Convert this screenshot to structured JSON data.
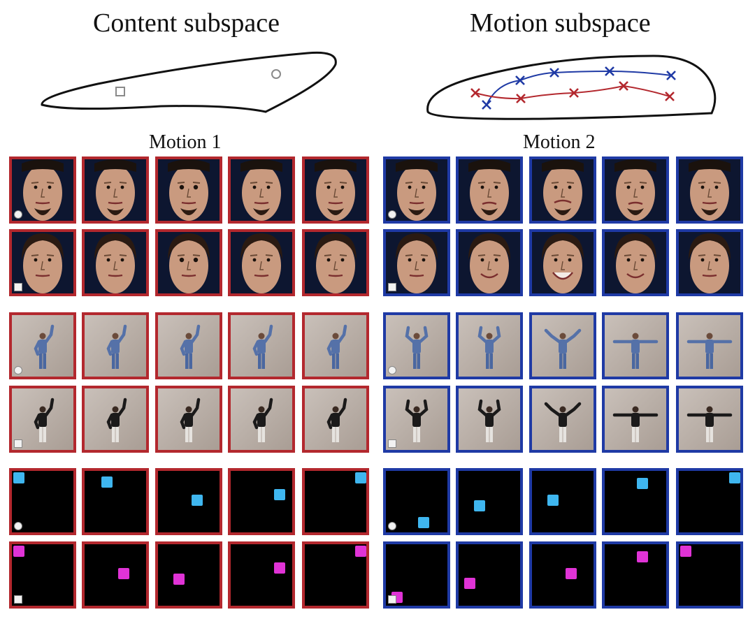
{
  "header": {
    "content_title": "Content subspace",
    "motion_title": "Motion subspace"
  },
  "groups": {
    "motion1_label": "Motion 1",
    "motion2_label": "Motion 2"
  },
  "colors": {
    "motion1": "#b3282e",
    "motion2": "#1f3aa5",
    "outline": "#111111",
    "content_marker": "#8a8a8a",
    "face_bg": "#0d1630",
    "skin": "#c99a7f",
    "skin_dark": "#6a4a36",
    "wall": "#b7aba2",
    "cyan_square": "#3fb6ef",
    "magenta_square": "#e033d6"
  },
  "diagram": {
    "content_markers": [
      "square-icon",
      "circle-icon"
    ],
    "motion_path_markers": "cross-icon"
  },
  "rows": [
    {
      "kind": "face",
      "subject": "man",
      "marker": "circle",
      "m1": [
        "neutral",
        "neutral",
        "widen",
        "neutral",
        "neutral"
      ],
      "m2": [
        "neutral",
        "frown",
        "snarl",
        "frown",
        "neutral"
      ]
    },
    {
      "kind": "face",
      "subject": "woman",
      "marker": "square",
      "m1": [
        "neutral",
        "neutral",
        "widen",
        "neutral",
        "neutral"
      ],
      "m2": [
        "neutral",
        "smile",
        "laugh",
        "smile",
        "neutral"
      ]
    },
    {
      "kind": "body",
      "subject": "light",
      "marker": "circle",
      "m1": [
        "arm-up",
        "arm-up",
        "arm-up",
        "arm-up",
        "arm-up"
      ],
      "m2": [
        "arms-up",
        "arms-up",
        "arms-spread",
        "arms-side",
        "arms-side"
      ]
    },
    {
      "kind": "body",
      "subject": "dark",
      "marker": "square",
      "m1": [
        "arm-up",
        "arm-up",
        "arm-up",
        "arm-up",
        "arm-up"
      ],
      "m2": [
        "arms-up",
        "arms-up",
        "arms-spread",
        "arms-side",
        "arms-side"
      ]
    },
    {
      "kind": "square",
      "subject": "cyan",
      "marker": "circle",
      "m1": [
        "top-left",
        "upper-mid",
        "center",
        "center-right",
        "top-right"
      ],
      "m2": [
        "bottom-center",
        "lower-mid",
        "center-mid",
        "upper-center",
        "top-right"
      ]
    },
    {
      "kind": "square",
      "subject": "magenta",
      "marker": "square",
      "m1": [
        "top-left",
        "center",
        "lower-mid",
        "center-right",
        "top-right"
      ],
      "m2": [
        "bottom-left",
        "lower-center",
        "center",
        "upper-center",
        "top-left"
      ]
    }
  ]
}
